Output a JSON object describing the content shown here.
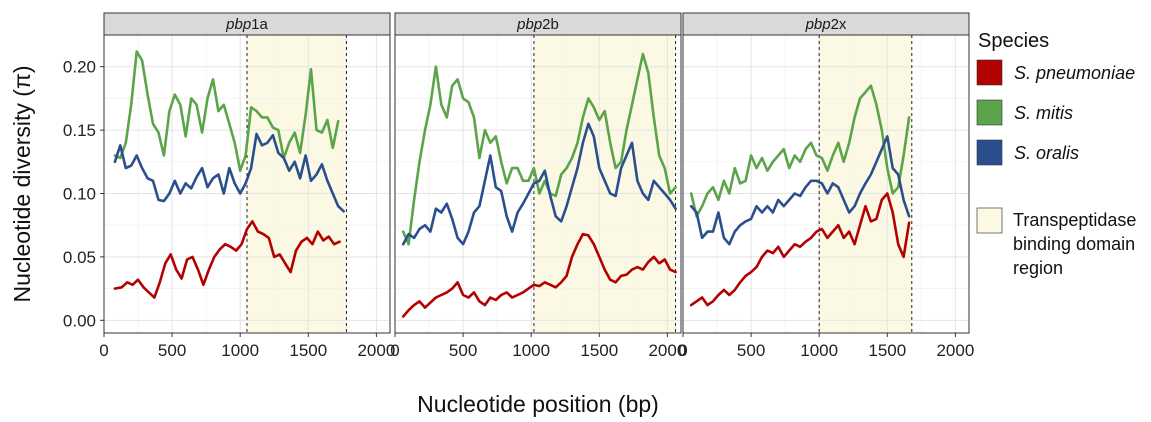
{
  "chart_data": {
    "type": "line",
    "xlabel": "Nucleotide position (bp)",
    "ylabel": "Nucleotide diversity (π)",
    "xlim": [
      0,
      2100
    ],
    "ylim": [
      -0.01,
      0.225
    ],
    "xticks": [
      0,
      500,
      1000,
      1500,
      2000
    ],
    "xtick_labels": [
      "0",
      "500",
      "1000",
      "1500",
      "2000"
    ],
    "yticks": [
      0.0,
      0.05,
      0.1,
      0.15,
      0.2
    ],
    "ytick_labels": [
      "0.00",
      "0.05",
      "0.10",
      "0.15",
      "0.20"
    ],
    "grid": true,
    "legend": {
      "title": "Species",
      "placement": "right",
      "items": [
        {
          "label": "S. pneumoniae",
          "color": "#b30000"
        },
        {
          "label": "S. mitis",
          "color": "#5ba44a"
        },
        {
          "label": "S. oralis",
          "color": "#2b4f8e"
        }
      ],
      "region_label_lines": [
        "Transpeptidase",
        "binding domain",
        "region"
      ],
      "region_color": "#fbf9e4"
    },
    "panels": [
      {
        "title_italic": "pbp",
        "title_plain": "1a",
        "region": [
          1050,
          1780
        ],
        "series": [
          {
            "name": "S. pneumoniae",
            "color": "#b30000",
            "x": [
              80,
              130,
              170,
              210,
              250,
              290,
              330,
              370,
              410,
              450,
              490,
              530,
              570,
              610,
              650,
              690,
              730,
              770,
              810,
              850,
              890,
              930,
              970,
              1010,
              1050,
              1090,
              1130,
              1170,
              1210,
              1250,
              1290,
              1330,
              1370,
              1410,
              1450,
              1490,
              1530,
              1570,
              1610,
              1650,
              1690,
              1730
            ],
            "y": [
              0.025,
              0.026,
              0.03,
              0.028,
              0.032,
              0.026,
              0.022,
              0.018,
              0.03,
              0.045,
              0.052,
              0.04,
              0.033,
              0.048,
              0.05,
              0.04,
              0.028,
              0.04,
              0.05,
              0.056,
              0.06,
              0.058,
              0.055,
              0.06,
              0.072,
              0.078,
              0.07,
              0.068,
              0.065,
              0.05,
              0.052,
              0.045,
              0.038,
              0.055,
              0.062,
              0.065,
              0.06,
              0.07,
              0.063,
              0.066,
              0.06,
              0.062
            ]
          },
          {
            "name": "S. mitis",
            "color": "#5ba44a",
            "x": [
              80,
              120,
              160,
              200,
              240,
              280,
              320,
              360,
              400,
              440,
              480,
              520,
              560,
              600,
              640,
              680,
              720,
              760,
              800,
              840,
              880,
              920,
              960,
              1000,
              1040,
              1080,
              1120,
              1160,
              1200,
              1240,
              1280,
              1320,
              1360,
              1400,
              1440,
              1480,
              1520,
              1560,
              1600,
              1640,
              1680,
              1720
            ],
            "y": [
              0.13,
              0.128,
              0.14,
              0.17,
              0.212,
              0.205,
              0.178,
              0.155,
              0.148,
              0.13,
              0.165,
              0.178,
              0.17,
              0.145,
              0.175,
              0.17,
              0.148,
              0.175,
              0.19,
              0.165,
              0.17,
              0.155,
              0.14,
              0.118,
              0.13,
              0.168,
              0.165,
              0.16,
              0.16,
              0.152,
              0.15,
              0.128,
              0.14,
              0.148,
              0.132,
              0.162,
              0.198,
              0.15,
              0.148,
              0.158,
              0.136,
              0.157
            ]
          },
          {
            "name": "S. oralis",
            "color": "#2b4f8e",
            "x": [
              80,
              120,
              160,
              200,
              240,
              280,
              320,
              360,
              400,
              440,
              480,
              520,
              560,
              600,
              640,
              680,
              720,
              760,
              800,
              840,
              880,
              920,
              960,
              1000,
              1040,
              1080,
              1120,
              1160,
              1200,
              1240,
              1280,
              1320,
              1360,
              1400,
              1440,
              1480,
              1520,
              1560,
              1600,
              1640,
              1680,
              1720,
              1760
            ],
            "y": [
              0.125,
              0.138,
              0.12,
              0.122,
              0.13,
              0.12,
              0.112,
              0.11,
              0.095,
              0.094,
              0.1,
              0.11,
              0.1,
              0.108,
              0.104,
              0.113,
              0.12,
              0.105,
              0.112,
              0.115,
              0.1,
              0.12,
              0.108,
              0.1,
              0.108,
              0.12,
              0.147,
              0.138,
              0.14,
              0.146,
              0.132,
              0.128,
              0.118,
              0.125,
              0.112,
              0.13,
              0.11,
              0.115,
              0.123,
              0.11,
              0.1,
              0.09,
              0.086
            ]
          }
        ]
      },
      {
        "title_italic": "pbp",
        "title_plain": "2b",
        "region": [
          1020,
          2060
        ],
        "series": [
          {
            "name": "S. pneumoniae",
            "color": "#b30000",
            "x": [
              60,
              100,
              140,
              180,
              220,
              260,
              300,
              340,
              380,
              420,
              460,
              500,
              540,
              580,
              620,
              660,
              700,
              740,
              780,
              820,
              860,
              900,
              940,
              980,
              1020,
              1060,
              1100,
              1140,
              1180,
              1220,
              1260,
              1300,
              1340,
              1380,
              1420,
              1460,
              1500,
              1540,
              1580,
              1620,
              1660,
              1700,
              1740,
              1780,
              1820,
              1860,
              1900,
              1940,
              1980,
              2020,
              2060
            ],
            "y": [
              0.003,
              0.008,
              0.012,
              0.015,
              0.01,
              0.014,
              0.018,
              0.02,
              0.022,
              0.025,
              0.03,
              0.02,
              0.018,
              0.022,
              0.015,
              0.012,
              0.018,
              0.016,
              0.02,
              0.022,
              0.018,
              0.02,
              0.022,
              0.025,
              0.028,
              0.027,
              0.03,
              0.028,
              0.026,
              0.03,
              0.035,
              0.05,
              0.06,
              0.068,
              0.067,
              0.06,
              0.05,
              0.04,
              0.032,
              0.03,
              0.035,
              0.036,
              0.04,
              0.042,
              0.04,
              0.046,
              0.05,
              0.045,
              0.048,
              0.04,
              0.038
            ]
          },
          {
            "name": "S. mitis",
            "color": "#5ba44a",
            "x": [
              60,
              100,
              140,
              180,
              220,
              260,
              300,
              340,
              380,
              420,
              460,
              500,
              540,
              580,
              620,
              660,
              700,
              740,
              780,
              820,
              860,
              900,
              940,
              980,
              1020,
              1060,
              1100,
              1140,
              1180,
              1220,
              1260,
              1300,
              1340,
              1380,
              1420,
              1460,
              1500,
              1540,
              1580,
              1620,
              1660,
              1700,
              1740,
              1780,
              1820,
              1860,
              1900,
              1940,
              1980,
              2020,
              2060
            ],
            "y": [
              0.07,
              0.06,
              0.095,
              0.125,
              0.15,
              0.17,
              0.2,
              0.17,
              0.16,
              0.185,
              0.19,
              0.175,
              0.172,
              0.16,
              0.128,
              0.15,
              0.14,
              0.145,
              0.125,
              0.108,
              0.12,
              0.12,
              0.11,
              0.11,
              0.12,
              0.1,
              0.11,
              0.1,
              0.098,
              0.115,
              0.12,
              0.128,
              0.14,
              0.16,
              0.175,
              0.168,
              0.158,
              0.165,
              0.14,
              0.12,
              0.125,
              0.15,
              0.17,
              0.19,
              0.21,
              0.195,
              0.16,
              0.13,
              0.12,
              0.1,
              0.105
            ]
          },
          {
            "name": "S. oralis",
            "color": "#2b4f8e",
            "x": [
              60,
              100,
              140,
              180,
              220,
              260,
              300,
              340,
              380,
              420,
              460,
              500,
              540,
              580,
              620,
              660,
              700,
              740,
              780,
              820,
              860,
              900,
              940,
              980,
              1020,
              1060,
              1100,
              1140,
              1180,
              1220,
              1260,
              1300,
              1340,
              1380,
              1420,
              1460,
              1500,
              1540,
              1580,
              1620,
              1660,
              1700,
              1740,
              1780,
              1820,
              1860,
              1900,
              1940,
              1980,
              2020,
              2060
            ],
            "y": [
              0.06,
              0.068,
              0.065,
              0.072,
              0.075,
              0.07,
              0.088,
              0.085,
              0.092,
              0.08,
              0.065,
              0.06,
              0.07,
              0.085,
              0.09,
              0.11,
              0.13,
              0.105,
              0.102,
              0.082,
              0.07,
              0.085,
              0.092,
              0.1,
              0.108,
              0.11,
              0.118,
              0.098,
              0.082,
              0.078,
              0.09,
              0.105,
              0.12,
              0.14,
              0.155,
              0.145,
              0.12,
              0.11,
              0.1,
              0.098,
              0.12,
              0.13,
              0.14,
              0.11,
              0.1,
              0.095,
              0.11,
              0.105,
              0.1,
              0.095,
              0.088
            ]
          }
        ]
      },
      {
        "title_italic": "pbp",
        "title_plain": "2x",
        "region": [
          1000,
          1680
        ],
        "series": [
          {
            "name": "S. pneumoniae",
            "color": "#b30000",
            "x": [
              60,
              100,
              140,
              180,
              220,
              260,
              300,
              340,
              380,
              420,
              460,
              500,
              540,
              580,
              620,
              660,
              700,
              740,
              780,
              820,
              860,
              900,
              940,
              980,
              1020,
              1060,
              1100,
              1140,
              1180,
              1220,
              1260,
              1300,
              1340,
              1380,
              1420,
              1460,
              1500,
              1540,
              1580,
              1620,
              1660
            ],
            "y": [
              0.012,
              0.015,
              0.018,
              0.012,
              0.015,
              0.02,
              0.024,
              0.02,
              0.024,
              0.03,
              0.035,
              0.038,
              0.042,
              0.05,
              0.055,
              0.053,
              0.058,
              0.05,
              0.055,
              0.06,
              0.058,
              0.062,
              0.065,
              0.07,
              0.072,
              0.065,
              0.07,
              0.075,
              0.065,
              0.07,
              0.06,
              0.075,
              0.09,
              0.078,
              0.08,
              0.095,
              0.1,
              0.085,
              0.06,
              0.05,
              0.077
            ]
          },
          {
            "name": "S. mitis",
            "color": "#5ba44a",
            "x": [
              60,
              100,
              140,
              180,
              220,
              260,
              300,
              340,
              380,
              420,
              460,
              500,
              540,
              580,
              620,
              660,
              700,
              740,
              780,
              820,
              860,
              900,
              940,
              980,
              1020,
              1060,
              1100,
              1140,
              1180,
              1220,
              1260,
              1300,
              1340,
              1380,
              1420,
              1460,
              1500,
              1540,
              1580,
              1620,
              1660
            ],
            "y": [
              0.1,
              0.082,
              0.09,
              0.1,
              0.105,
              0.095,
              0.11,
              0.1,
              0.12,
              0.108,
              0.11,
              0.13,
              0.12,
              0.128,
              0.118,
              0.125,
              0.13,
              0.135,
              0.12,
              0.13,
              0.125,
              0.135,
              0.14,
              0.13,
              0.128,
              0.118,
              0.13,
              0.14,
              0.125,
              0.14,
              0.16,
              0.175,
              0.18,
              0.185,
              0.17,
              0.15,
              0.12,
              0.1,
              0.105,
              0.13,
              0.16
            ]
          },
          {
            "name": "S. oralis",
            "color": "#2b4f8e",
            "x": [
              60,
              100,
              140,
              180,
              220,
              260,
              300,
              340,
              380,
              420,
              460,
              500,
              540,
              580,
              620,
              660,
              700,
              740,
              780,
              820,
              860,
              900,
              940,
              980,
              1020,
              1060,
              1100,
              1140,
              1180,
              1220,
              1260,
              1300,
              1340,
              1380,
              1420,
              1460,
              1500,
              1540,
              1580,
              1620,
              1660
            ],
            "y": [
              0.09,
              0.085,
              0.065,
              0.07,
              0.07,
              0.085,
              0.065,
              0.06,
              0.07,
              0.075,
              0.078,
              0.08,
              0.09,
              0.085,
              0.09,
              0.085,
              0.095,
              0.09,
              0.095,
              0.1,
              0.098,
              0.105,
              0.11,
              0.11,
              0.108,
              0.1,
              0.108,
              0.105,
              0.095,
              0.085,
              0.09,
              0.1,
              0.108,
              0.115,
              0.125,
              0.135,
              0.145,
              0.12,
              0.115,
              0.095,
              0.082
            ]
          }
        ]
      }
    ]
  }
}
